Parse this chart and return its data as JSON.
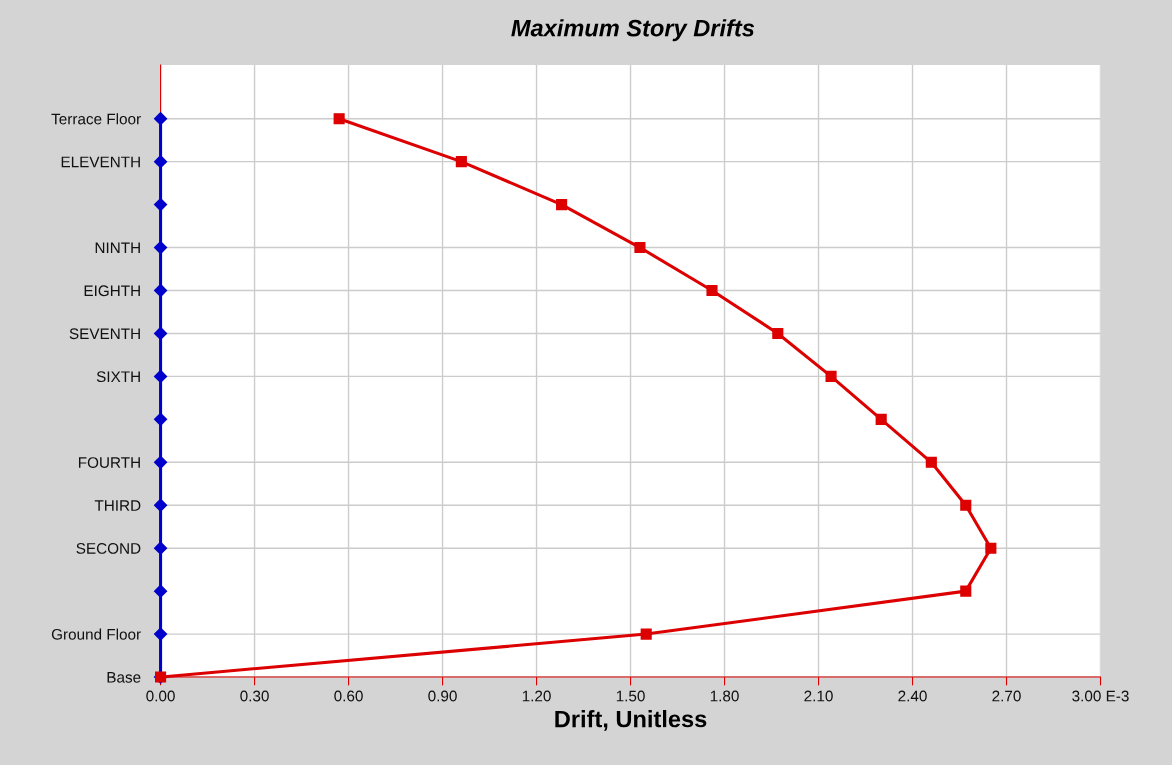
{
  "chart_data": {
    "type": "line",
    "orientation": "horizontal",
    "title": "Maximum Story Drifts",
    "xlabel": "Drift, Unitless",
    "categories": [
      "Terrace Floor",
      "ELEVENTH",
      null,
      "NINTH",
      "EIGHTH",
      "SEVENTH",
      "SIXTH",
      null,
      "FOURTH",
      "THIRD",
      "SECOND",
      null,
      "Ground Floor",
      "Base"
    ],
    "series": [
      {
        "color": "#0000cc",
        "marker": "diamond",
        "values": [
          0,
          0,
          0,
          0,
          0,
          0,
          0,
          0,
          0,
          0,
          0,
          0,
          0,
          0
        ]
      },
      {
        "color": "#dd0000",
        "marker": "square",
        "values": [
          0.57,
          0.96,
          1.28,
          1.53,
          1.76,
          1.97,
          2.14,
          2.3,
          2.46,
          2.57,
          2.65,
          2.57,
          1.55,
          0
        ]
      }
    ],
    "xlim": [
      0,
      3.0
    ],
    "xticks": [
      {
        "value": 0,
        "label": "0.00"
      },
      {
        "value": 0.3,
        "label": "0.30"
      },
      {
        "value": 0.6,
        "label": "0.60"
      },
      {
        "value": 0.9,
        "label": "0.90"
      },
      {
        "value": 1.2,
        "label": "1.20"
      },
      {
        "value": 1.5,
        "label": "1.50"
      },
      {
        "value": 1.8,
        "label": "1.80"
      },
      {
        "value": 2.1,
        "label": "2.10"
      },
      {
        "value": 2.4,
        "label": "2.40"
      },
      {
        "value": 2.7,
        "label": "2.70"
      },
      {
        "value": 3.0,
        "label": "3.00 E-3"
      }
    ],
    "grid": true,
    "line_style": "solid"
  }
}
